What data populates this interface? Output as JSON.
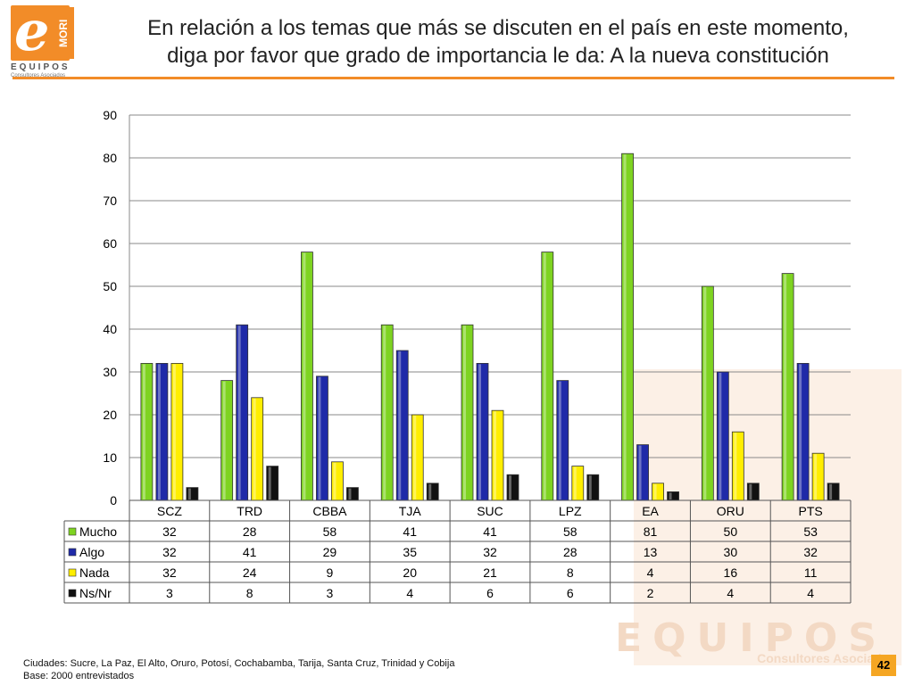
{
  "title_line1": "En relación a los temas que más se discuten en el país en este momento,",
  "title_line2": "diga por favor que grado de importancia le da: A la nueva constitución",
  "logo": {
    "text_equipos": "EQUIPOS",
    "text_mori": "MORI",
    "text_sub": "Consultores Asociados"
  },
  "watermark": {
    "equipos": "EQUIPOS",
    "consultores": "Consultores Asociados"
  },
  "footer": {
    "line1": "Ciudades: Sucre, La Paz, El Alto, Oruro, Potosí, Cochabamba, Tarija, Santa Cruz, Trinidad y Cobija",
    "line2": "Base: 2000 entrevistados"
  },
  "page_number": "42",
  "chart_data": {
    "type": "bar",
    "categories": [
      "SCZ",
      "TRD",
      "CBBA",
      "TJA",
      "SUC",
      "LPZ",
      "EA",
      "ORU",
      "PTS"
    ],
    "series": [
      {
        "name": "Mucho",
        "color": "#7ed321",
        "values": [
          32,
          28,
          58,
          41,
          41,
          58,
          81,
          50,
          53
        ]
      },
      {
        "name": "Algo",
        "color": "#1f2aa8",
        "values": [
          32,
          41,
          29,
          35,
          32,
          28,
          13,
          30,
          32
        ]
      },
      {
        "name": "Nada",
        "color": "#ffee00",
        "values": [
          32,
          24,
          9,
          20,
          21,
          8,
          4,
          16,
          11
        ]
      },
      {
        "name": "Ns/Nr",
        "color": "#111111",
        "values": [
          3,
          8,
          3,
          4,
          6,
          6,
          2,
          4,
          4
        ]
      }
    ],
    "ylim": [
      0,
      90
    ],
    "yticks": [
      0,
      10,
      20,
      30,
      40,
      50,
      60,
      70,
      80,
      90
    ],
    "grid": true,
    "legend": "data-table"
  }
}
